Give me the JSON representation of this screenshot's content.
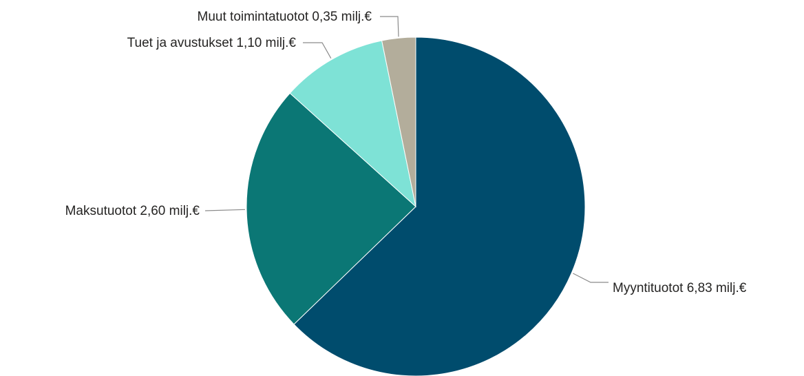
{
  "chart_data": {
    "type": "pie",
    "unit": "milj.€",
    "slices": [
      {
        "label": "Myyntituotot",
        "value": 6.83,
        "value_text": "6,83 milj.€",
        "color": "#004c6d"
      },
      {
        "label": "Maksutuotot",
        "value": 2.6,
        "value_text": "2,60 milj.€",
        "color": "#0b7775"
      },
      {
        "label": "Tuet ja avustukset",
        "value": 1.1,
        "value_text": "1,10 milj.€",
        "color": "#7ee2d6"
      },
      {
        "label": "Muut toimintatuotot",
        "value": 0.35,
        "value_text": "0,35 milj.€",
        "color": "#b3ad9b"
      }
    ],
    "start_angle": "12 o'clock",
    "direction": "clockwise",
    "legend": "none",
    "data_labels": "outside with leader lines"
  }
}
